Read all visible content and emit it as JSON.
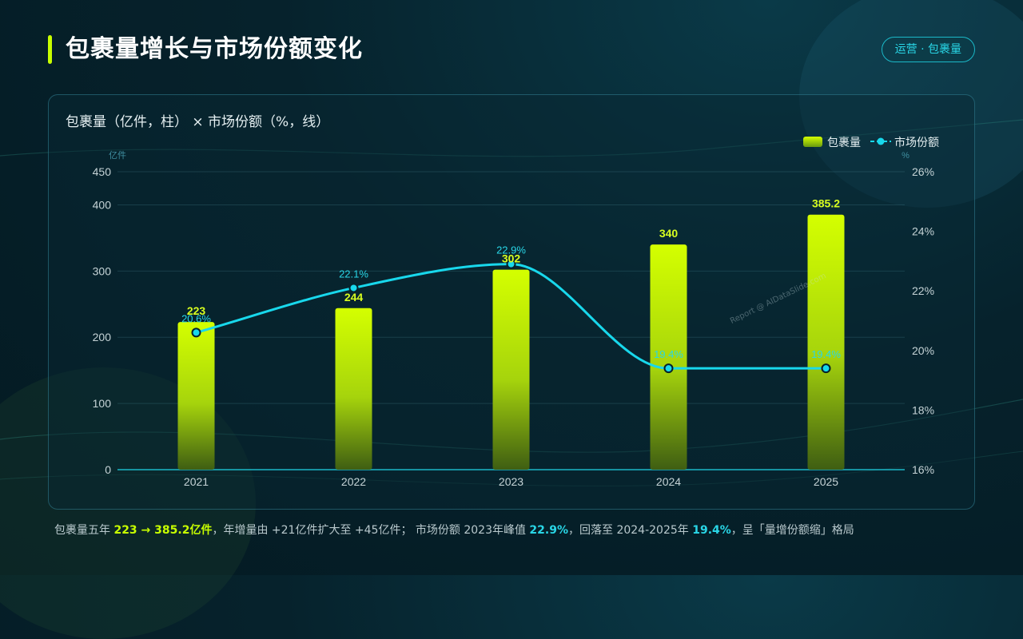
{
  "header": {
    "title": "包裹量增长与市场份额变化",
    "tag": "运营 · 包裹量"
  },
  "chart_data": {
    "type": "bar",
    "title": "包裹量（亿件，柱） × 市场份额（%，线）",
    "categories": [
      "2021",
      "2022",
      "2023",
      "2024",
      "2025"
    ],
    "series": [
      {
        "name": "包裹量",
        "type": "bar",
        "axis": "left",
        "values": [
          223,
          244,
          302,
          340,
          385.2
        ],
        "labels": [
          "223",
          "244",
          "302",
          "340",
          "385.2"
        ]
      },
      {
        "name": "市场份额",
        "type": "line",
        "axis": "right",
        "values": [
          20.6,
          22.1,
          22.9,
          19.4,
          19.4
        ],
        "labels": [
          "20.6%",
          "22.1%",
          "22.9%",
          "19.4%",
          "19.4%"
        ]
      }
    ],
    "left_axis": {
      "unit": "亿件",
      "ylim": [
        0,
        450
      ],
      "ticks": [
        0,
        100,
        200,
        300,
        400,
        450
      ],
      "tick_labels": [
        "0",
        "100",
        "200",
        "300",
        "400",
        "450"
      ]
    },
    "right_axis": {
      "unit": "%",
      "ylim": [
        16,
        26
      ],
      "ticks": [
        16,
        18,
        20,
        22,
        24,
        26
      ],
      "tick_labels": [
        "16%",
        "18%",
        "20%",
        "22%",
        "24%",
        "26%"
      ]
    },
    "grid": true,
    "legend_position": "top-right",
    "colors": {
      "bar": "#c8ff00",
      "line": "#18d8ec"
    }
  },
  "watermark": "Report @ AIDataSlide.com",
  "footer": {
    "p1": "包裹量五年 ",
    "h1": "223 → 385.2亿件",
    "p2": "，年增量由 +21亿件扩大至 +45亿件； 市场份额 2023年峰值 ",
    "h2": "22.9%",
    "p3": "，回落至 2024-2025年 ",
    "h3": "19.4%",
    "p4": "，呈「量增份额缩」格局"
  }
}
